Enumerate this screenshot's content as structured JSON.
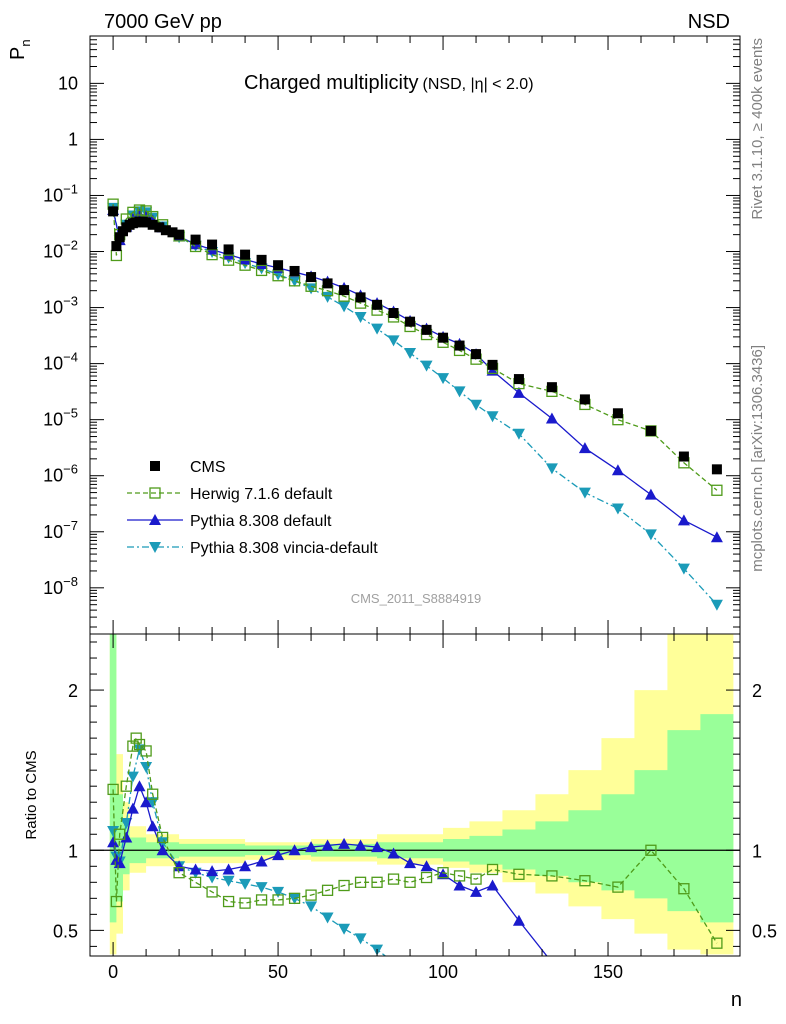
{
  "header": {
    "left": "7000 GeV pp",
    "right": "NSD"
  },
  "side_labels": {
    "top": "Rivet 3.1.10, ≥ 400k events",
    "bottom": "mcplots.cern.ch [arXiv:1306.3436]"
  },
  "chart_data": [
    {
      "type": "scatter",
      "title": "Charged multiplicity",
      "subtitle": "(NSD, |η| < 2.0)",
      "watermark": "CMS_2011_S8884919",
      "ylabel_main": "P",
      "ylabel_sub": "n",
      "xlabel": "n",
      "yscale": "log",
      "xlim": [
        -7,
        190
      ],
      "ylim": [
        1.5e-09,
        70
      ],
      "y_ticks": [
        {
          "v": 10,
          "label": "10"
        },
        {
          "v": 1,
          "label": "1"
        },
        {
          "v": 0.1,
          "label": "10",
          "sup": "−1"
        },
        {
          "v": 0.01,
          "label": "10",
          "sup": "−2"
        },
        {
          "v": 0.001,
          "label": "10",
          "sup": "−3"
        },
        {
          "v": 0.0001,
          "label": "10",
          "sup": "−4"
        },
        {
          "v": 1e-05,
          "label": "10",
          "sup": "−5"
        },
        {
          "v": 1e-06,
          "label": "10",
          "sup": "−6"
        },
        {
          "v": 1e-07,
          "label": "10",
          "sup": "−7"
        },
        {
          "v": 1e-08,
          "label": "10",
          "sup": "−8"
        }
      ],
      "legend": {
        "placement": "bottom-left",
        "entries": [
          {
            "label": "CMS",
            "color": "#000000",
            "marker": "square-filled",
            "line": "none"
          },
          {
            "label": "Herwig 7.1.6 default",
            "color": "#4f9b1a",
            "marker": "square-open",
            "line": "dashed"
          },
          {
            "label": "Pythia 8.308 default",
            "color": "#1a1acc",
            "marker": "triangle-up",
            "line": "solid"
          },
          {
            "label": "Pythia 8.308 vincia-default",
            "color": "#1b9bb8",
            "marker": "triangle-down",
            "line": "dashdot"
          }
        ]
      },
      "series": [
        {
          "name": "CMS",
          "x": [
            0,
            1,
            2,
            3,
            4,
            5,
            6,
            7,
            8,
            9,
            10,
            12,
            14,
            16,
            18,
            20,
            25,
            30,
            35,
            40,
            45,
            50,
            55,
            60,
            65,
            70,
            75,
            80,
            85,
            90,
            95,
            100,
            105,
            110,
            115,
            123,
            133,
            143,
            153,
            163,
            173,
            183
          ],
          "y": [
            0.052,
            0.0125,
            0.018,
            0.023,
            0.027,
            0.03,
            0.032,
            0.033,
            0.034,
            0.034,
            0.033,
            0.03,
            0.027,
            0.024,
            0.022,
            0.02,
            0.0163,
            0.0133,
            0.0109,
            0.0088,
            0.0071,
            0.0057,
            0.0045,
            0.0035,
            0.0027,
            0.00205,
            0.00152,
            0.00112,
            0.0008,
            0.00056,
            0.0004,
            0.00029,
            0.00021,
            0.000148,
            9.5e-05,
            5.3e-05,
            3.8e-05,
            2.3e-05,
            1.3e-05,
            6.3e-06,
            2.2e-06,
            1.3e-06
          ]
        },
        {
          "name": "Herwig 7.1.6 default",
          "x": [
            0,
            1,
            2,
            4,
            6,
            8,
            10,
            12,
            15,
            20,
            25,
            30,
            35,
            40,
            45,
            50,
            55,
            60,
            65,
            70,
            75,
            80,
            85,
            90,
            95,
            100,
            105,
            110,
            115,
            123,
            133,
            143,
            153,
            163,
            173,
            183
          ],
          "y": [
            0.07,
            0.0085,
            0.02,
            0.038,
            0.05,
            0.055,
            0.053,
            0.042,
            0.03,
            0.019,
            0.0123,
            0.0088,
            0.007,
            0.0057,
            0.0046,
            0.0037,
            0.003,
            0.0024,
            0.002,
            0.0016,
            0.0012,
            0.0009,
            0.00068,
            0.00046,
            0.00033,
            0.00024,
            0.000172,
            0.00012,
            8.2e-05,
            4.4e-05,
            3.2e-05,
            1.87e-05,
            1e-05,
            6.3e-06,
            1.7e-06,
            5.5e-07
          ]
        },
        {
          "name": "Pythia 8.308 default",
          "x": [
            0,
            2,
            4,
            6,
            8,
            10,
            12,
            15,
            20,
            25,
            30,
            35,
            40,
            45,
            50,
            55,
            60,
            65,
            70,
            75,
            80,
            85,
            90,
            95,
            100,
            105,
            110,
            115,
            123,
            133,
            143,
            153,
            163,
            173,
            183
          ],
          "y": [
            0.055,
            0.016,
            0.028,
            0.038,
            0.046,
            0.044,
            0.036,
            0.027,
            0.0185,
            0.0135,
            0.0108,
            0.0088,
            0.0072,
            0.006,
            0.0051,
            0.0043,
            0.0036,
            0.0029,
            0.00225,
            0.00165,
            0.0012,
            0.00085,
            0.00058,
            0.00042,
            0.0003,
            0.000225,
            0.000148,
            7.5e-05,
            3e-05,
            1.05e-05,
            3.1e-06,
            1.25e-06,
            4.6e-07,
            1.6e-07,
            8e-08
          ]
        },
        {
          "name": "Pythia 8.308 vincia-default",
          "x": [
            0,
            2,
            4,
            6,
            8,
            10,
            12,
            15,
            20,
            25,
            30,
            35,
            40,
            45,
            50,
            55,
            60,
            65,
            70,
            75,
            80,
            85,
            90,
            95,
            100,
            105,
            110,
            115,
            123,
            133,
            143,
            153,
            163,
            173,
            183
          ],
          "y": [
            0.06,
            0.016,
            0.03,
            0.044,
            0.052,
            0.05,
            0.04,
            0.028,
            0.018,
            0.0127,
            0.0098,
            0.0078,
            0.0062,
            0.005,
            0.0039,
            0.003,
            0.0022,
            0.00155,
            0.00105,
            0.00068,
            0.00042,
            0.00026,
            0.000155,
            9.2e-05,
            5.5e-05,
            3.2e-05,
            1.85e-05,
            1.15e-05,
            5.6e-06,
            1.35e-06,
            5e-07,
            2.6e-07,
            9e-08,
            2.2e-08,
            5e-09
          ]
        }
      ]
    },
    {
      "type": "scatter",
      "ylabel": "Ratio to CMS",
      "xlabel": "n",
      "xlim": [
        -7,
        190
      ],
      "ylim": [
        0.34,
        2.35
      ],
      "x_ticks": [
        0,
        50,
        100,
        150
      ],
      "y_ticks": [
        0.5,
        1,
        2
      ],
      "reference_line": 1,
      "bands": {
        "x_edges": [
          -1,
          1,
          3,
          5,
          10,
          20,
          40,
          60,
          80,
          100,
          108,
          118,
          128,
          138,
          148,
          158,
          168,
          178,
          188
        ],
        "yellow_low": [
          0.35,
          0.48,
          0.75,
          0.86,
          0.9,
          0.92,
          0.94,
          0.93,
          0.91,
          0.89,
          0.86,
          0.8,
          0.73,
          0.65,
          0.57,
          0.48,
          0.38,
          0.35
        ],
        "yellow_high": [
          2.35,
          1.6,
          1.3,
          1.15,
          1.1,
          1.07,
          1.05,
          1.07,
          1.1,
          1.14,
          1.18,
          1.25,
          1.35,
          1.5,
          1.7,
          2.0,
          2.35,
          2.35
        ],
        "green_low": [
          0.55,
          0.68,
          0.85,
          0.92,
          0.95,
          0.96,
          0.97,
          0.96,
          0.95,
          0.93,
          0.91,
          0.88,
          0.84,
          0.8,
          0.75,
          0.7,
          0.62,
          0.55
        ],
        "green_high": [
          2.35,
          1.35,
          1.16,
          1.08,
          1.05,
          1.04,
          1.03,
          1.04,
          1.05,
          1.07,
          1.09,
          1.13,
          1.18,
          1.25,
          1.35,
          1.5,
          1.75,
          1.85
        ],
        "yellow_color": "#ffff99",
        "green_color": "#99ff99"
      },
      "series": [
        {
          "name": "Herwig 7.1.6 default",
          "x": [
            0,
            1,
            2,
            4,
            6,
            7,
            8,
            10,
            12,
            15,
            20,
            25,
            30,
            35,
            40,
            45,
            50,
            55,
            60,
            65,
            70,
            75,
            80,
            85,
            90,
            95,
            100,
            105,
            110,
            115,
            123,
            133,
            143,
            153,
            163,
            173,
            183
          ],
          "y": [
            1.38,
            0.68,
            1.1,
            1.4,
            1.65,
            1.7,
            1.66,
            1.62,
            1.35,
            1.08,
            0.86,
            0.8,
            0.74,
            0.68,
            0.67,
            0.69,
            0.69,
            0.7,
            0.72,
            0.75,
            0.78,
            0.8,
            0.8,
            0.82,
            0.8,
            0.83,
            0.86,
            0.84,
            0.82,
            0.88,
            0.85,
            0.84,
            0.81,
            0.77,
            1.0,
            0.76,
            0.42
          ]
        },
        {
          "name": "Pythia 8.308 default",
          "x": [
            0,
            1,
            2,
            4,
            6,
            8,
            10,
            12,
            15,
            20,
            25,
            30,
            35,
            40,
            45,
            50,
            55,
            60,
            65,
            70,
            75,
            80,
            85,
            90,
            95,
            100,
            105,
            110,
            115,
            123,
            133
          ],
          "y": [
            1.05,
            0.94,
            0.92,
            1.08,
            1.26,
            1.4,
            1.3,
            1.15,
            1.0,
            0.9,
            0.88,
            0.87,
            0.88,
            0.9,
            0.93,
            0.97,
            1.0,
            1.02,
            1.03,
            1.04,
            1.03,
            1.02,
            0.98,
            0.92,
            0.9,
            0.85,
            0.78,
            0.74,
            0.78,
            0.56,
            0.3
          ]
        },
        {
          "name": "Pythia 8.308 vincia-default",
          "x": [
            0,
            1,
            2,
            4,
            6,
            8,
            10,
            12,
            15,
            20,
            25,
            30,
            35,
            40,
            45,
            50,
            55,
            60,
            65,
            70,
            75,
            80,
            85
          ],
          "y": [
            1.12,
            0.96,
            0.93,
            1.17,
            1.46,
            1.63,
            1.52,
            1.3,
            1.05,
            0.9,
            0.86,
            0.83,
            0.81,
            0.79,
            0.77,
            0.74,
            0.7,
            0.65,
            0.58,
            0.51,
            0.45,
            0.38,
            0.3
          ]
        }
      ]
    }
  ]
}
